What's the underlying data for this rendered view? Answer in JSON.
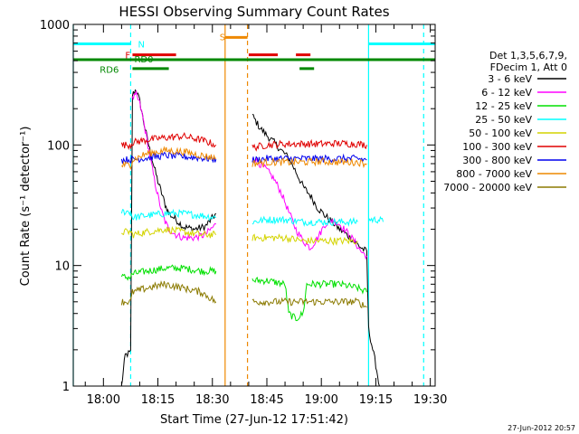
{
  "chart_data": {
    "type": "line",
    "title": "HESSI Observing Summary Count Rates",
    "xlabel": "Start Time (27-Jun-12 17:51:42)",
    "ylabel": "Count Rate (s⁻¹ detector⁻¹)",
    "yscale": "log",
    "xlim": [
      "17:51:42",
      "19:31:20"
    ],
    "ylim": [
      1,
      1000
    ],
    "x_ticks": [
      "18:00",
      "18:15",
      "18:30",
      "18:45",
      "19:00",
      "19:15",
      "19:30"
    ],
    "y_ticks": [
      "1",
      "10",
      "100",
      "1000"
    ],
    "footer_date": "27-Jun-2012 20:57",
    "legend": {
      "header": [
        "Det 1,3,5,6,7,9,",
        "FDecim 1, Att 0"
      ],
      "entries": [
        {
          "label": "3 - 6 keV",
          "color": "#000000"
        },
        {
          "label": "6 - 12 keV",
          "color": "#ff00ff"
        },
        {
          "label": "12 - 25 keV",
          "color": "#00e000"
        },
        {
          "label": "25 - 50 keV",
          "color": "#00ffff"
        },
        {
          "label": "50 - 100 keV",
          "color": "#d4d400"
        },
        {
          "label": "100 - 300 keV",
          "color": "#e00000"
        },
        {
          "label": "300 - 800 keV",
          "color": "#0000ee"
        },
        {
          "label": "800 - 7000 keV",
          "color": "#ee8800"
        },
        {
          "label": "7000 - 20000 keV",
          "color": "#8b7a00"
        }
      ]
    },
    "flag_labels": {
      "N": "N",
      "F": "F",
      "RD0": "RD0",
      "RD6": "RD6",
      "S": "S"
    },
    "flag_bars": [
      {
        "name": "night",
        "color": "#00ffff",
        "y": 690,
        "segments": [
          [
            "17:51:42",
            "18:07:30"
          ],
          [
            "19:13:00",
            "19:31:20"
          ]
        ]
      },
      {
        "name": "flare",
        "color": "#e00000",
        "y": 560,
        "segments": [
          [
            "18:08:00",
            "18:20:00"
          ],
          [
            "18:40:00",
            "18:48:00"
          ],
          [
            "18:53:00",
            "18:57:00"
          ]
        ]
      },
      {
        "name": "rd0",
        "color": "#008800",
        "y": 510,
        "segments": [
          [
            "17:51:42",
            "19:31:20"
          ]
        ]
      },
      {
        "name": "rd6",
        "color": "#008800",
        "y": 430,
        "segments": [
          [
            "18:08:00",
            "18:18:00"
          ],
          [
            "18:54:00",
            "18:58:00"
          ]
        ]
      },
      {
        "name": "saa",
        "color": "#ee8800",
        "y": 780,
        "segments": [
          [
            "18:33:30",
            "18:39:40"
          ]
        ]
      }
    ],
    "vlines": [
      {
        "x": "17:51:42",
        "color": "#00ffff",
        "dash": false
      },
      {
        "x": "18:07:30",
        "color": "#00ffff",
        "dash": true
      },
      {
        "x": "18:33:30",
        "color": "#ee8800",
        "dash": false
      },
      {
        "x": "18:39:40",
        "color": "#ee8800",
        "dash": true
      },
      {
        "x": "19:13:00",
        "color": "#00ffff",
        "dash": false
      },
      {
        "x": "19:28:10",
        "color": "#00ffff",
        "dash": true
      }
    ],
    "series": [
      {
        "name": "3 - 6 keV",
        "color": "#000000",
        "segments": [
          [
            [
              "18:05:00",
              1
            ],
            [
              "18:06:00",
              1.8
            ],
            [
              "18:07:30",
              1.9
            ],
            [
              "18:08:00",
              260
            ],
            [
              "18:09:00",
              290
            ],
            [
              "18:10:00",
              230
            ],
            [
              "18:11:00",
              160
            ],
            [
              "18:12:00",
              115
            ],
            [
              "18:13:00",
              85
            ],
            [
              "18:14:00",
              65
            ],
            [
              "18:15:00",
              50
            ],
            [
              "18:16:00",
              40
            ],
            [
              "18:17:00",
              32
            ],
            [
              "18:18:00",
              27
            ],
            [
              "18:20:00",
              24
            ],
            [
              "18:22:00",
              21
            ],
            [
              "18:25:00",
              20
            ],
            [
              "18:28:00",
              21
            ],
            [
              "18:31:00",
              27
            ]
          ],
          [
            [
              "18:41:00",
              175
            ],
            [
              "18:43:00",
              140
            ],
            [
              "18:45:00",
              120
            ],
            [
              "18:47:00",
              105
            ],
            [
              "18:49:00",
              90
            ],
            [
              "18:51:00",
              78
            ],
            [
              "18:53:00",
              60
            ],
            [
              "18:55:00",
              45
            ],
            [
              "18:57:00",
              38
            ],
            [
              "18:59:00",
              30
            ],
            [
              "19:01:00",
              26
            ],
            [
              "19:03:00",
              23
            ],
            [
              "19:05:00",
              20
            ],
            [
              "19:07:00",
              18
            ],
            [
              "19:09:00",
              16
            ],
            [
              "19:11:00",
              14
            ],
            [
              "19:12:30",
              13
            ],
            [
              "19:13:00",
              3
            ],
            [
              "19:15:00",
              1.5
            ],
            [
              "19:16:00",
              1
            ]
          ]
        ]
      },
      {
        "name": "6 - 12 keV",
        "color": "#ff00ff",
        "segments": [
          [
            [
              "18:08:00",
              240
            ],
            [
              "18:09:00",
              260
            ],
            [
              "18:10:00",
              220
            ],
            [
              "18:11:00",
              160
            ],
            [
              "18:12:00",
              110
            ],
            [
              "18:13:00",
              75
            ],
            [
              "18:14:00",
              52
            ],
            [
              "18:15:00",
              38
            ],
            [
              "18:16:00",
              28
            ],
            [
              "18:17:00",
              23
            ],
            [
              "18:18:00",
              20
            ],
            [
              "18:20:00",
              18
            ],
            [
              "18:22:00",
              17
            ],
            [
              "18:25:00",
              17
            ],
            [
              "18:28:00",
              18
            ],
            [
              "18:31:00",
              22
            ]
          ],
          [
            [
              "18:41:00",
              80
            ],
            [
              "18:43:00",
              70
            ],
            [
              "18:45:00",
              62
            ],
            [
              "18:47:00",
              52
            ],
            [
              "18:49:00",
              40
            ],
            [
              "18:51:00",
              28
            ],
            [
              "18:53:00",
              20
            ],
            [
              "18:55:00",
              16
            ],
            [
              "18:57:00",
              14
            ],
            [
              "18:59:00",
              17
            ],
            [
              "19:01:00",
              22
            ],
            [
              "19:03:00",
              24
            ],
            [
              "19:05:00",
              22
            ],
            [
              "19:07:00",
              19
            ],
            [
              "19:09:00",
              16
            ],
            [
              "19:11:00",
              13
            ],
            [
              "19:12:30",
              12
            ]
          ]
        ]
      },
      {
        "name": "12 - 25 keV",
        "color": "#00e000",
        "segments": [
          [
            [
              "18:05:00",
              8
            ],
            [
              "18:07:30",
              8
            ],
            [
              "18:08:00",
              8.5
            ],
            [
              "18:12:00",
              9
            ],
            [
              "18:17:00",
              9.5
            ],
            [
              "18:22:00",
              9.5
            ],
            [
              "18:27:00",
              9
            ],
            [
              "18:31:00",
              9
            ]
          ],
          [
            [
              "18:41:00",
              7.5
            ],
            [
              "18:45:00",
              7.5
            ],
            [
              "18:50:00",
              7
            ],
            [
              "18:51:00",
              4
            ],
            [
              "18:53:00",
              3.6
            ],
            [
              "18:55:00",
              4
            ],
            [
              "18:56:00",
              7
            ],
            [
              "19:00:00",
              7
            ],
            [
              "19:05:00",
              7
            ],
            [
              "19:10:00",
              6.5
            ],
            [
              "19:12:30",
              6
            ]
          ]
        ]
      },
      {
        "name": "25 - 50 keV",
        "color": "#00ffff",
        "segments": [
          [
            [
              "18:05:00",
              28
            ],
            [
              "18:07:30",
              28
            ],
            [
              "18:08:00",
              25
            ],
            [
              "18:12:00",
              26
            ],
            [
              "18:17:00",
              27
            ],
            [
              "18:22:00",
              27
            ],
            [
              "18:27:00",
              26
            ],
            [
              "18:31:00",
              25
            ]
          ],
          [
            [
              "18:41:00",
              23
            ],
            [
              "18:45:00",
              24
            ],
            [
              "18:50:00",
              24
            ],
            [
              "18:55:00",
              23
            ],
            [
              "19:00:00",
              23
            ],
            [
              "19:05:00",
              23
            ],
            [
              "19:10:00",
              23
            ]
          ],
          [
            [
              "19:13:00",
              24
            ],
            [
              "19:16:00",
              24
            ],
            [
              "19:17:00",
              23
            ]
          ]
        ]
      },
      {
        "name": "50 - 100 keV",
        "color": "#d4d400",
        "segments": [
          [
            [
              "18:05:00",
              19
            ],
            [
              "18:07:30",
              19
            ],
            [
              "18:08:00",
              18
            ],
            [
              "18:12:00",
              19
            ],
            [
              "18:17:00",
              20
            ],
            [
              "18:22:00",
              19
            ],
            [
              "18:27:00",
              18
            ],
            [
              "18:31:00",
              18
            ]
          ],
          [
            [
              "18:41:00",
              17
            ],
            [
              "18:45:00",
              17
            ],
            [
              "18:50:00",
              17
            ],
            [
              "18:55:00",
              16
            ],
            [
              "19:00:00",
              16
            ],
            [
              "19:05:00",
              16
            ],
            [
              "19:10:00",
              16
            ]
          ]
        ]
      },
      {
        "name": "100 - 300 keV",
        "color": "#e00000",
        "segments": [
          [
            [
              "18:05:00",
              100
            ],
            [
              "18:07:30",
              100
            ],
            [
              "18:08:00",
              105
            ],
            [
              "18:12:00",
              110
            ],
            [
              "18:17:00",
              115
            ],
            [
              "18:22:00",
              118
            ],
            [
              "18:27:00",
              110
            ],
            [
              "18:31:00",
              100
            ]
          ],
          [
            [
              "18:41:00",
              95
            ],
            [
              "18:45:00",
              100
            ],
            [
              "18:50:00",
              102
            ],
            [
              "18:55:00",
              102
            ],
            [
              "19:00:00",
              102
            ],
            [
              "19:05:00",
              103
            ],
            [
              "19:10:00",
              102
            ],
            [
              "19:12:30",
              100
            ]
          ]
        ]
      },
      {
        "name": "300 - 800 keV",
        "color": "#0000ee",
        "segments": [
          [
            [
              "18:05:00",
              75
            ],
            [
              "18:07:30",
              76
            ],
            [
              "18:08:00",
              76
            ],
            [
              "18:12:00",
              78
            ],
            [
              "18:17:00",
              82
            ],
            [
              "18:22:00",
              80
            ],
            [
              "18:27:00",
              78
            ],
            [
              "18:31:00",
              76
            ]
          ],
          [
            [
              "18:41:00",
              75
            ],
            [
              "18:45:00",
              77
            ],
            [
              "18:50:00",
              77
            ],
            [
              "18:55:00",
              77
            ],
            [
              "19:00:00",
              77
            ],
            [
              "19:05:00",
              77
            ],
            [
              "19:10:00",
              77
            ],
            [
              "19:12:30",
              75
            ]
          ]
        ]
      },
      {
        "name": "800 - 7000 keV",
        "color": "#ee8800",
        "segments": [
          [
            [
              "18:05:00",
              68
            ],
            [
              "18:07:30",
              68
            ],
            [
              "18:08:00",
              75
            ],
            [
              "18:12:00",
              85
            ],
            [
              "18:17:00",
              90
            ],
            [
              "18:22:00",
              88
            ],
            [
              "18:27:00",
              82
            ],
            [
              "18:31:00",
              78
            ]
          ],
          [
            [
              "18:41:00",
              70
            ],
            [
              "18:45:00",
              72
            ],
            [
              "18:50:00",
              72
            ],
            [
              "18:55:00",
              72
            ],
            [
              "19:00:00",
              73
            ],
            [
              "19:05:00",
              72
            ],
            [
              "19:10:00",
              72
            ],
            [
              "19:12:30",
              70
            ]
          ]
        ]
      },
      {
        "name": "7000 - 20000 keV",
        "color": "#8b7a00",
        "segments": [
          [
            [
              "18:05:00",
              5
            ],
            [
              "18:07:30",
              5
            ],
            [
              "18:08:00",
              6
            ],
            [
              "18:12:00",
              6.5
            ],
            [
              "18:17:00",
              7
            ],
            [
              "18:22:00",
              6.5
            ],
            [
              "18:27:00",
              6
            ],
            [
              "18:31:00",
              5
            ]
          ],
          [
            [
              "18:41:00",
              5
            ],
            [
              "18:45:00",
              5
            ],
            [
              "18:50:00",
              5
            ],
            [
              "18:55:00",
              5
            ],
            [
              "19:00:00",
              5
            ],
            [
              "19:05:00",
              5
            ],
            [
              "19:10:00",
              5
            ],
            [
              "19:12:30",
              4.5
            ]
          ]
        ]
      }
    ]
  }
}
